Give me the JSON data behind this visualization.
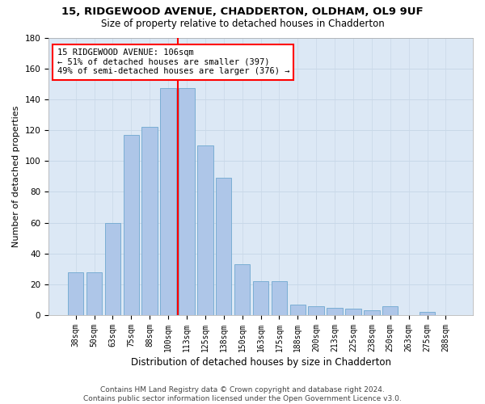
{
  "title1": "15, RIDGEWOOD AVENUE, CHADDERTON, OLDHAM, OL9 9UF",
  "title2": "Size of property relative to detached houses in Chadderton",
  "xlabel": "Distribution of detached houses by size in Chadderton",
  "ylabel": "Number of detached properties",
  "categories": [
    "38sqm",
    "50sqm",
    "63sqm",
    "75sqm",
    "88sqm",
    "100sqm",
    "113sqm",
    "125sqm",
    "138sqm",
    "150sqm",
    "163sqm",
    "175sqm",
    "188sqm",
    "200sqm",
    "213sqm",
    "225sqm",
    "238sqm",
    "250sqm",
    "263sqm",
    "275sqm",
    "288sqm"
  ],
  "values": [
    28,
    28,
    60,
    117,
    122,
    147,
    147,
    110,
    89,
    33,
    22,
    22,
    7,
    6,
    5,
    4,
    3,
    6,
    0,
    2,
    0
  ],
  "bar_color": "#aec6e8",
  "bar_edge_color": "#6fa8d0",
  "vline_x": 5.5,
  "vline_color": "red",
  "annotation_text": "15 RIDGEWOOD AVENUE: 106sqm\n← 51% of detached houses are smaller (397)\n49% of semi-detached houses are larger (376) →",
  "annotation_box_color": "white",
  "annotation_box_edge_color": "red",
  "ylim": [
    0,
    180
  ],
  "yticks": [
    0,
    20,
    40,
    60,
    80,
    100,
    120,
    140,
    160,
    180
  ],
  "grid_color": "#c8d8e8",
  "background_color": "#dce8f5",
  "footer1": "Contains HM Land Registry data © Crown copyright and database right 2024.",
  "footer2": "Contains public sector information licensed under the Open Government Licence v3.0.",
  "title_fontsize": 9.5,
  "subtitle_fontsize": 8.5,
  "xlabel_fontsize": 8.5,
  "ylabel_fontsize": 8,
  "tick_fontsize": 7,
  "annotation_fontsize": 7.5,
  "footer_fontsize": 6.5
}
